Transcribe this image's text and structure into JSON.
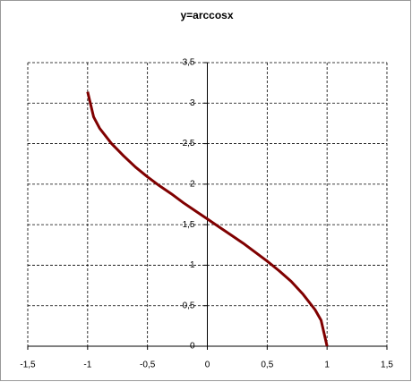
{
  "chart_data": {
    "type": "line",
    "title": "y=arccosx",
    "x": [
      -1,
      -0.95,
      -0.9,
      -0.8,
      -0.7,
      -0.6,
      -0.5,
      -0.4,
      -0.3,
      -0.2,
      -0.1,
      0,
      0.1,
      0.2,
      0.3,
      0.4,
      0.5,
      0.6,
      0.7,
      0.8,
      0.9,
      0.95,
      1
    ],
    "series": [
      {
        "name": "arccos x",
        "color": "#800000",
        "values": [
          3.14,
          2.83,
          2.69,
          2.5,
          2.35,
          2.21,
          2.09,
          1.98,
          1.88,
          1.77,
          1.67,
          1.57,
          1.47,
          1.37,
          1.27,
          1.16,
          1.05,
          0.93,
          0.8,
          0.64,
          0.45,
          0.32,
          0
        ]
      }
    ],
    "xlim": [
      -1.5,
      1.5
    ],
    "xticks": [
      {
        "value": -1.5,
        "label": "-1,5"
      },
      -1,
      {
        "value": -0.5,
        "label": "-0,5"
      },
      0,
      {
        "value": 0.5,
        "label": "0,5"
      },
      1,
      {
        "value": 1.5,
        "label": "1,5"
      }
    ],
    "ylim": [
      0,
      3.5
    ],
    "yticks": [
      0,
      {
        "value": 0.5,
        "label": "0,5"
      },
      1,
      {
        "value": 1.5,
        "label": "1,5"
      },
      2,
      {
        "value": 2.5,
        "label": "2,5"
      },
      3,
      {
        "value": 3.5,
        "label": "3,5"
      }
    ],
    "grid": true
  }
}
